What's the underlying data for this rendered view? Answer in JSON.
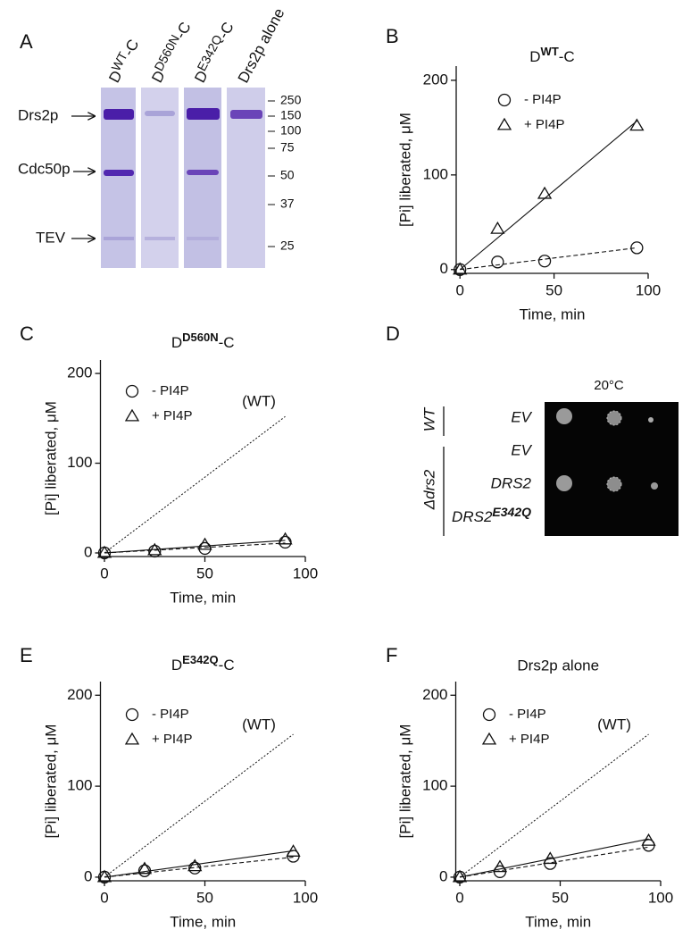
{
  "panel_labels": [
    "A",
    "B",
    "C",
    "D",
    "E",
    "F"
  ],
  "gel": {
    "lanes": [
      [
        "D",
        "WT",
        "-C"
      ],
      [
        "D",
        "D560N",
        "-C"
      ],
      [
        "D",
        "E342Q",
        "-C"
      ],
      "Drs2p alone"
    ],
    "proteins": [
      "Drs2p",
      "Cdc50p",
      "TEV"
    ],
    "markers": [
      250,
      150,
      100,
      75,
      50,
      37,
      25
    ]
  },
  "spots": {
    "temperature": "20°C",
    "strains": [
      "WT",
      "Δdrs2"
    ],
    "plasmids": [
      [
        "EV"
      ],
      [
        "EV"
      ],
      [
        "DRS2"
      ],
      [
        "DRS2",
        "E342Q"
      ]
    ]
  },
  "chart_data": [
    {
      "type": "scatter",
      "title": [
        "D",
        "WT",
        "-C"
      ],
      "x_label": "Time, min",
      "y_label": "[Pi] liberated, μM",
      "x": [
        0,
        20,
        45,
        94
      ],
      "xlim": [
        -2,
        100
      ],
      "xticks": [
        0,
        50,
        100
      ],
      "ylim": [
        -4,
        215
      ],
      "yticks": [
        0,
        100,
        200
      ],
      "series": [
        {
          "name": "- PI4P",
          "marker": "circle",
          "line_style": "dashed",
          "values": [
            0,
            8,
            9,
            23
          ],
          "fit": {
            "x": [
              0,
              94
            ],
            "y": [
              0,
              23
            ]
          }
        },
        {
          "name": "+ PI4P",
          "marker": "triangle",
          "line_style": "solid",
          "values": [
            0,
            43,
            80,
            152
          ],
          "fit": {
            "x": [
              0,
              94
            ],
            "y": [
              0,
              157
            ]
          }
        }
      ]
    },
    {
      "type": "scatter",
      "title": [
        "D",
        "D560N",
        "-C"
      ],
      "x_label": "Time, min",
      "y_label": "[Pi] liberated, μM",
      "x": [
        0,
        25,
        50,
        90
      ],
      "xlim": [
        -2,
        100
      ],
      "xticks": [
        0,
        50,
        100
      ],
      "ylim": [
        -4,
        215
      ],
      "yticks": [
        0,
        100,
        200
      ],
      "series": [
        {
          "name": "- PI4P",
          "marker": "circle",
          "line_style": "dashed",
          "values": [
            0,
            2,
            5,
            12
          ],
          "fit": {
            "x": [
              0,
              90
            ],
            "y": [
              0,
              11
            ]
          }
        },
        {
          "name": "+ PI4P",
          "marker": "triangle",
          "line_style": "solid",
          "values": [
            0,
            3,
            9,
            15
          ],
          "fit": {
            "x": [
              0,
              90
            ],
            "y": [
              0,
              14
            ]
          }
        }
      ],
      "reference": {
        "label": "(WT)",
        "line_style": "dotted",
        "x": [
          0,
          90
        ],
        "y": [
          0,
          152
        ]
      }
    },
    {
      "type": "scatter",
      "title": [
        "D",
        "E342Q",
        "-C"
      ],
      "x_label": "Time, min",
      "y_label": "[Pi] liberated, μM",
      "x": [
        0,
        20,
        45,
        94
      ],
      "xlim": [
        -2,
        100
      ],
      "xticks": [
        0,
        50,
        100
      ],
      "ylim": [
        -4,
        215
      ],
      "yticks": [
        0,
        100,
        200
      ],
      "series": [
        {
          "name": "- PI4P",
          "marker": "circle",
          "line_style": "dashed",
          "values": [
            0,
            7,
            10,
            23
          ],
          "fit": {
            "x": [
              0,
              94
            ],
            "y": [
              0,
              22
            ]
          }
        },
        {
          "name": "+ PI4P",
          "marker": "triangle",
          "line_style": "solid",
          "values": [
            0,
            9,
            12,
            28
          ],
          "fit": {
            "x": [
              0,
              94
            ],
            "y": [
              0,
              29
            ]
          }
        }
      ],
      "reference": {
        "label": "(WT)",
        "line_style": "dotted",
        "x": [
          0,
          94
        ],
        "y": [
          0,
          157
        ]
      }
    },
    {
      "type": "scatter",
      "title": "Drs2p alone",
      "x_label": "Time, min",
      "y_label": "[Pi] liberated, μM",
      "x": [
        0,
        20,
        45,
        94
      ],
      "xlim": [
        -2,
        100
      ],
      "xticks": [
        0,
        50,
        100
      ],
      "ylim": [
        -4,
        215
      ],
      "yticks": [
        0,
        100,
        200
      ],
      "series": [
        {
          "name": "- PI4P",
          "marker": "circle",
          "line_style": "dashed",
          "values": [
            0,
            6,
            15,
            35
          ],
          "fit": {
            "x": [
              0,
              94
            ],
            "y": [
              0,
              33
            ]
          }
        },
        {
          "name": "+ PI4P",
          "marker": "triangle",
          "line_style": "solid",
          "values": [
            0,
            11,
            20,
            40
          ],
          "fit": {
            "x": [
              0,
              94
            ],
            "y": [
              0,
              42
            ]
          }
        }
      ],
      "reference": {
        "label": "(WT)",
        "line_style": "dotted",
        "x": [
          0,
          94
        ],
        "y": [
          0,
          157
        ]
      }
    }
  ]
}
